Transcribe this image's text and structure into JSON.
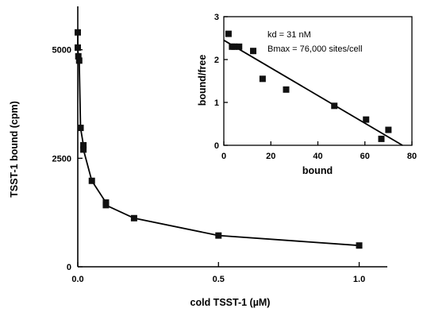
{
  "chart_data": [
    {
      "type": "line",
      "xlabel": "cold TSST-1 (µM)",
      "ylabel": "TSST-1 bound (cpm)",
      "xlim": [
        0,
        1.1
      ],
      "ylim": [
        0,
        6000
      ],
      "xticks": [
        0,
        0.5,
        1.0
      ],
      "xtick_labels": [
        "0.0",
        "0.5",
        "1.0"
      ],
      "yticks": [
        0,
        2500,
        5000
      ],
      "ytick_labels": [
        "0",
        "2500",
        "5000"
      ],
      "grid": false,
      "series": [
        {
          "markers": "square",
          "x": [
            0.0,
            0.0,
            0.002,
            0.005,
            0.01,
            0.02,
            0.02,
            0.05,
            0.1,
            0.1,
            0.2,
            0.5,
            1.0
          ],
          "y": [
            5400,
            5050,
            4850,
            4750,
            3200,
            2800,
            2700,
            1980,
            1480,
            1420,
            1120,
            720,
            490
          ]
        }
      ]
    },
    {
      "type": "scatter",
      "placement": "inset top-right",
      "xlabel": "bound",
      "ylabel": "bound/free",
      "xlim": [
        0,
        80
      ],
      "ylim": [
        0,
        3
      ],
      "xticks": [
        0,
        20,
        40,
        60,
        80
      ],
      "xtick_labels": [
        "0",
        "20",
        "40",
        "60",
        "80"
      ],
      "yticks": [
        0,
        1,
        2,
        3
      ],
      "ytick_labels": [
        "0",
        "1",
        "2",
        "3"
      ],
      "grid": false,
      "annotations": [
        "kd = 31 nM",
        "Bmax = 76,000 sites/cell"
      ],
      "series": [
        {
          "markers": "square",
          "x": [
            2,
            3.5,
            4.5,
            6.5,
            12.5,
            16.5,
            26.5,
            47,
            60.5,
            67,
            70
          ],
          "y": [
            2.6,
            2.3,
            2.3,
            2.3,
            2.2,
            1.55,
            1.3,
            0.92,
            0.6,
            0.15,
            0.36
          ]
        }
      ],
      "fit_line": {
        "x": [
          0,
          76
        ],
        "y": [
          2.45,
          0
        ]
      }
    }
  ]
}
